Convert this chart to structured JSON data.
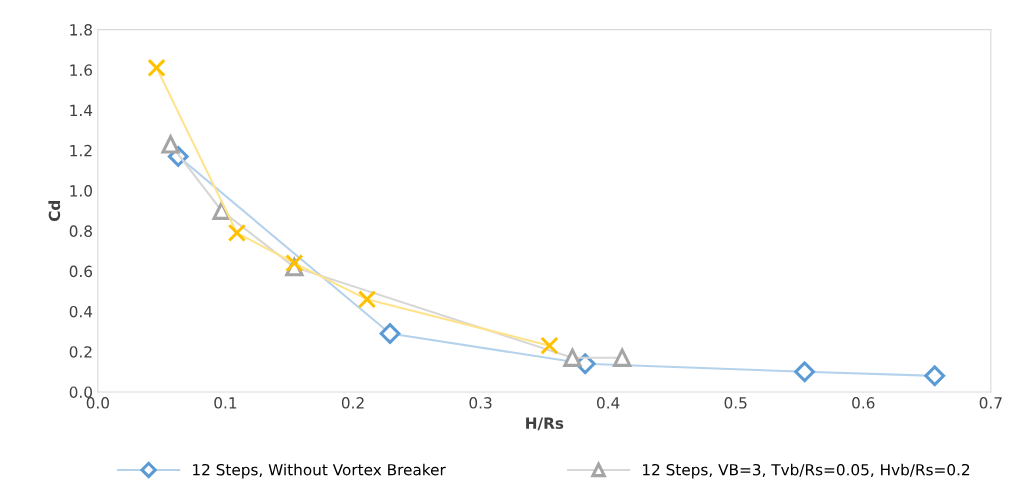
{
  "chart_data": {
    "type": "line",
    "xlabel": "H/Rs",
    "ylabel": "Cd",
    "xlim": [
      0,
      0.7
    ],
    "xticks": [
      {
        "value": 0,
        "label": "0.0"
      },
      0.1,
      0.2,
      0.3,
      0.4,
      0.5,
      0.6,
      0.7
    ],
    "ylim": [
      0,
      1.8
    ],
    "yticks": [
      {
        "value": 0,
        "label": "0.0"
      },
      0.2,
      0.4,
      0.6,
      0.8,
      {
        "value": 1,
        "label": "1.0"
      },
      1.2,
      1.4,
      1.6,
      1.8
    ],
    "grid": false,
    "legend": "bottom",
    "series": [
      {
        "name": "12 Steps, Without Vortex Breaker",
        "color": "#5b9bd5",
        "marker": "diamond",
        "x": [
          0.063,
          0.229,
          0.382,
          0.554,
          0.656
        ],
        "values": [
          1.17,
          0.29,
          0.14,
          0.1,
          0.08
        ]
      },
      {
        "name": "12 Steps, VB=3, Tvb/Rs=0.05, Hvb/Rs=0.2",
        "color": "#a5a5a5",
        "marker": "triangle",
        "x": [
          0.057,
          0.097,
          0.154,
          0.372,
          0.411
        ],
        "values": [
          1.23,
          0.9,
          0.62,
          0.17,
          0.17
        ]
      },
      {
        "color": "#ffc000",
        "marker": "cross",
        "x": [
          0.046,
          0.109,
          0.154,
          0.211,
          0.354
        ],
        "values": [
          1.61,
          0.79,
          0.64,
          0.46,
          0.23
        ]
      }
    ]
  }
}
